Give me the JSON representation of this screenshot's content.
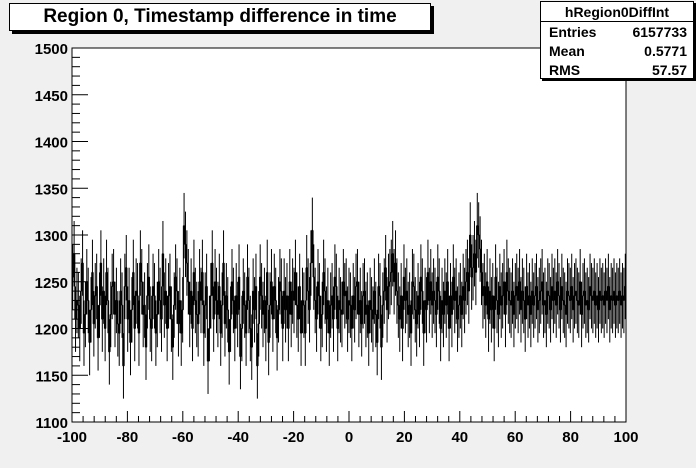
{
  "title": "Region 0, Timestamp difference in time",
  "stats": {
    "name": "hRegion0DiffInt",
    "rows": [
      {
        "label": "Entries",
        "value": "6157733"
      },
      {
        "label": "Mean",
        "value": "0.5771"
      },
      {
        "label": "RMS",
        "value": "57.57"
      }
    ]
  },
  "chart_data": {
    "type": "bar",
    "style": "step-histogram-with-error-bars",
    "xlim": [
      -100,
      100
    ],
    "ylim": [
      1100,
      1500
    ],
    "xticks": [
      -100,
      -80,
      -60,
      -40,
      -20,
      0,
      20,
      40,
      60,
      80,
      100
    ],
    "yticks": [
      1100,
      1150,
      1200,
      1250,
      1300,
      1350,
      1400,
      1450,
      1500
    ],
    "bin_width": 1,
    "error_bar": 35,
    "values": [
      1255,
      1280,
      1210,
      1230,
      1225,
      1200,
      1240,
      1270,
      1195,
      1215,
      1250,
      1230,
      1185,
      1220,
      1260,
      1205,
      1235,
      1245,
      1190,
      1225,
      1270,
      1210,
      1240,
      1200,
      1260,
      1230,
      1175,
      1215,
      1245,
      1250,
      1215,
      1230,
      1205,
      1195,
      1240,
      1225,
      1160,
      1245,
      1265,
      1210,
      1230,
      1185,
      1220,
      1260,
      1200,
      1240,
      1235,
      1195,
      1270,
      1250,
      1215,
      1225,
      1180,
      1235,
      1255,
      1210,
      1200,
      1245,
      1235,
      1195,
      1215,
      1250,
      1230,
      1210,
      1280,
      1225,
      1240,
      1200,
      1235,
      1245,
      1210,
      1180,
      1225,
      1255,
      1240,
      1205,
      1230,
      1195,
      1220,
      1310,
      1290,
      1270,
      1250,
      1215,
      1240,
      1200,
      1260,
      1230,
      1215,
      1205,
      1250,
      1230,
      1260,
      1195,
      1225,
      1245,
      1165,
      1200,
      1235,
      1270,
      1210,
      1250,
      1230,
      1215,
      1245,
      1195,
      1225,
      1270,
      1205,
      1235,
      1220,
      1175,
      1210,
      1250,
      1230,
      1200,
      1235,
      1215,
      1255,
      1170,
      1200,
      1240,
      1225,
      1195,
      1255,
      1230,
      1200,
      1180,
      1240,
      1220,
      1245,
      1160,
      1205,
      1255,
      1235,
      1215,
      1230,
      1200,
      1260,
      1185,
      1225,
      1250,
      1210,
      1245,
      1230,
      1190,
      1220,
      1250,
      1240,
      1200,
      1240,
      1220,
      1235,
      1200,
      1250,
      1215,
      1240,
      1230,
      1260,
      1225,
      1210,
      1245,
      1195,
      1230,
      1225,
      1195,
      1265,
      1240,
      1220,
      1270,
      1305,
      1255,
      1230,
      1210,
      1250,
      1235,
      1200,
      1215,
      1260,
      1240,
      1210,
      1230,
      1195,
      1225,
      1235,
      1210,
      1255,
      1245,
      1200,
      1230,
      1220,
      1215,
      1250,
      1235,
      1240,
      1210,
      1230,
      1225,
      1200,
      1235,
      1220,
      1245,
      1250,
      1215,
      1230,
      1205,
      1235,
      1240,
      1215,
      1225,
      1195,
      1230,
      1220,
      1210,
      1240,
      1215,
      1185,
      1245,
      1235,
      1180,
      1225,
      1240,
      1265,
      1220,
      1245,
      1250,
      1260,
      1280,
      1250,
      1270,
      1240,
      1225,
      1210,
      1235,
      1200,
      1255,
      1230,
      1240,
      1215,
      1225,
      1195,
      1250,
      1245,
      1220,
      1205,
      1235,
      1215,
      1255,
      1240,
      1195,
      1230,
      1220,
      1260,
      1230,
      1250,
      1225,
      1240,
      1230,
      1215,
      1255,
      1240,
      1200,
      1230,
      1215,
      1240,
      1225,
      1250,
      1200,
      1235,
      1215,
      1255,
      1230,
      1240,
      1210,
      1225,
      1235,
      1215,
      1245,
      1230,
      1250,
      1260,
      1240,
      1300,
      1255,
      1265,
      1280,
      1260,
      1310,
      1300,
      1285,
      1260,
      1235,
      1245,
      1225,
      1250,
      1210,
      1240,
      1220,
      1235,
      1200,
      1255,
      1230,
      1215,
      1245,
      1225,
      1235,
      1250,
      1215,
      1260,
      1240,
      1230,
      1225,
      1240,
      1215,
      1235,
      1245,
      1230,
      1250,
      1220,
      1240,
      1230,
      1210,
      1245,
      1225,
      1235,
      1215,
      1240,
      1225,
      1235,
      1245,
      1220,
      1230,
      1240,
      1250,
      1225,
      1230,
      1215,
      1240,
      1235,
      1220,
      1245,
      1230,
      1240,
      1225,
      1250,
      1235,
      1220,
      1245,
      1230,
      1225,
      1215,
      1240,
      1235,
      1230,
      1245,
      1220,
      1235,
      1240,
      1230,
      1225,
      1250,
      1215,
      1235,
      1240,
      1225,
      1230,
      1220,
      1245,
      1235,
      1230,
      1240,
      1225,
      1235,
      1220,
      1240,
      1230,
      1235,
      1225,
      1240,
      1230,
      1245,
      1220,
      1235,
      1230,
      1240,
      1225,
      1235,
      1230,
      1240,
      1225,
      1235,
      1230,
      1245
    ]
  }
}
